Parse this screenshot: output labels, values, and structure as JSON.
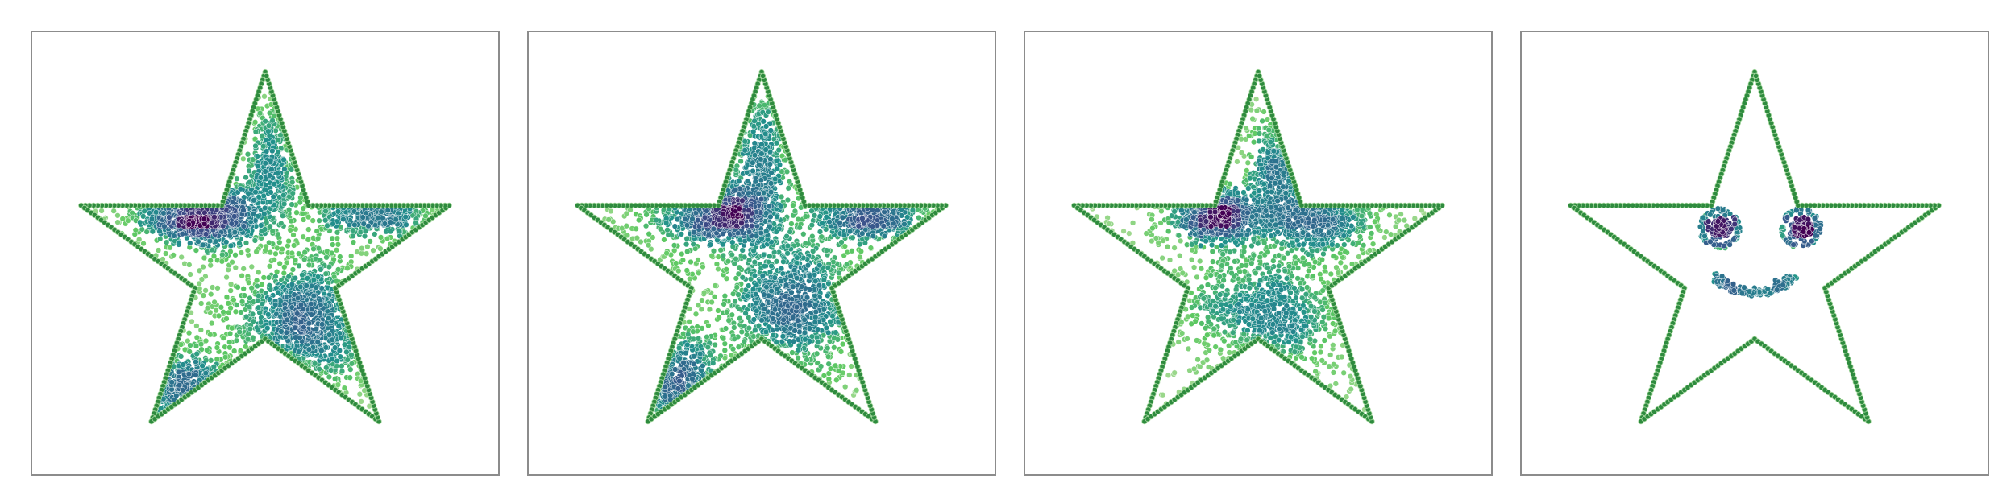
{
  "figure": {
    "background": "#ffffff",
    "frame_color": "#8c8c8c"
  },
  "chart_data": [
    {
      "type": "scatter",
      "panel": 1,
      "xlim": [
        -1.2,
        1.2
      ],
      "ylim": [
        -1.2,
        1.2
      ],
      "grid": false,
      "colormap": [
        "#440154",
        "#3b528b",
        "#2c728e",
        "#21918c",
        "#5ec962",
        "#b5de9e"
      ],
      "outline": {
        "color": "#2e8b3e",
        "shape": "five-pointed star",
        "outer_radius": 1.0,
        "inner_radius": 0.382
      },
      "clusters": [
        {
          "cx": -0.32,
          "cy": 0.27,
          "sx": 0.16,
          "sy": 0.08,
          "n": 900
        },
        {
          "cx": 0.21,
          "cy": -0.29,
          "sx": 0.17,
          "sy": 0.15,
          "n": 850
        },
        {
          "cx": 0.55,
          "cy": 0.28,
          "sx": 0.16,
          "sy": 0.06,
          "n": 320
        },
        {
          "cx": -0.4,
          "cy": -0.7,
          "sx": 0.13,
          "sy": 0.12,
          "n": 300
        },
        {
          "cx": 0.03,
          "cy": 0.55,
          "sx": 0.06,
          "sy": 0.18,
          "n": 260
        }
      ],
      "background_points": 650
    },
    {
      "type": "scatter",
      "panel": 2,
      "xlim": [
        -1.2,
        1.2
      ],
      "ylim": [
        -1.2,
        1.2
      ],
      "grid": false,
      "colormap": [
        "#440154",
        "#3b528b",
        "#2c728e",
        "#21918c",
        "#5ec962",
        "#b5de9e"
      ],
      "outline": {
        "color": "#2e8b3e",
        "shape": "five-pointed star",
        "outer_radius": 1.0,
        "inner_radius": 0.382
      },
      "clusters": [
        {
          "cx": -0.22,
          "cy": 0.27,
          "sx": 0.17,
          "sy": 0.08,
          "n": 700
        },
        {
          "cx": 0.16,
          "cy": -0.2,
          "sx": 0.16,
          "sy": 0.16,
          "n": 750
        },
        {
          "cx": 0.55,
          "cy": 0.28,
          "sx": 0.14,
          "sy": 0.07,
          "n": 380
        },
        {
          "cx": -0.45,
          "cy": -0.65,
          "sx": 0.14,
          "sy": 0.14,
          "n": 320
        },
        {
          "cx": 0.0,
          "cy": 0.55,
          "sx": 0.07,
          "sy": 0.2,
          "n": 280
        }
      ],
      "background_points": 650
    },
    {
      "type": "scatter",
      "panel": 3,
      "xlim": [
        -1.2,
        1.2
      ],
      "ylim": [
        -1.2,
        1.2
      ],
      "grid": false,
      "colormap": [
        "#440154",
        "#3b528b",
        "#2c728e",
        "#21918c",
        "#5ec962",
        "#b5de9e"
      ],
      "outline": {
        "color": "#2e8b3e",
        "shape": "five-pointed star",
        "outer_radius": 1.0,
        "inner_radius": 0.382
      },
      "clusters": [
        {
          "cx": -0.22,
          "cy": 0.26,
          "sx": 0.12,
          "sy": 0.07,
          "n": 650
        },
        {
          "cx": 0.3,
          "cy": 0.25,
          "sx": 0.15,
          "sy": 0.09,
          "n": 500
        },
        {
          "cx": 0.05,
          "cy": -0.25,
          "sx": 0.2,
          "sy": 0.17,
          "n": 750
        },
        {
          "cx": 0.12,
          "cy": 0.5,
          "sx": 0.08,
          "sy": 0.14,
          "n": 300
        }
      ],
      "background_points": 450
    },
    {
      "type": "scatter",
      "panel": 4,
      "xlim": [
        -1.2,
        1.2
      ],
      "ylim": [
        -1.2,
        1.2
      ],
      "grid": false,
      "colormap": [
        "#440154",
        "#3b528b",
        "#2c728e",
        "#21918c",
        "#5ec962",
        "#b5de9e"
      ],
      "outline": {
        "color": "#2e8b3e",
        "shape": "five-pointed star",
        "outer_radius": 1.0,
        "inner_radius": 0.382
      },
      "face": {
        "eyes": [
          {
            "cx": -0.18,
            "cy": 0.19,
            "ring_radius": 0.1,
            "pupil_radius": 0.05
          },
          {
            "cx": 0.24,
            "cy": 0.19,
            "ring_radius": 0.1,
            "pupil_radius": 0.05
          }
        ],
        "smile": {
          "cx": 0.0,
          "cy": -0.03,
          "rx": 0.2,
          "ry": 0.11,
          "from_deg": 195,
          "to_deg": 340
        }
      },
      "background_points": 0
    }
  ]
}
